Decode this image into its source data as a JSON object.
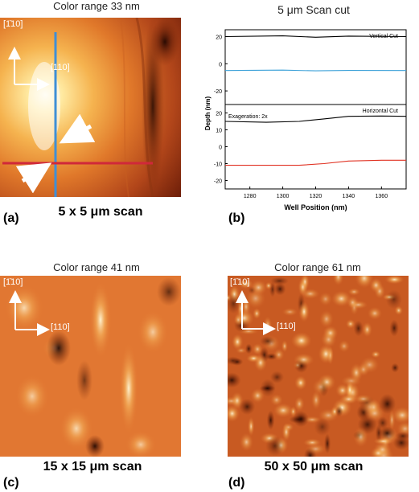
{
  "panels": {
    "a": {
      "letter": "(a)",
      "top_caption": "Color range 33 nm",
      "bottom_caption_prefix": "5  x 5 ",
      "bottom_caption_mu": "μ",
      "bottom_caption_suffix": "m scan",
      "dir_vert": "[1̄10]",
      "dir_horiz": "[110]"
    },
    "b": {
      "letter": "(b)",
      "title_prefix": "5 ",
      "title_mu": "μ",
      "title_suffix": "m Scan cut"
    },
    "c": {
      "letter": "(c)",
      "top_caption": "Color range 41 nm",
      "bottom_caption_prefix": "15  x 15 ",
      "bottom_caption_mu": "μ",
      "bottom_caption_suffix": "m scan",
      "dir_vert": "[1̄10]",
      "dir_horiz": "[110]"
    },
    "d": {
      "letter": "(d)",
      "top_caption": "Color range 61 nm",
      "bottom_caption_prefix": "50  x 50 ",
      "bottom_caption_mu": "μ",
      "bottom_caption_suffix": "m scan",
      "dir_vert": "[1̄10]",
      "dir_horiz": "[110]"
    }
  },
  "colors": {
    "vertical_line": "#3f8fd6",
    "horizontal_line": "#d0283a",
    "black_curve": "#000000",
    "blue_curve": "#3aa0d8",
    "red_curve": "#e03020"
  },
  "chart_data": {
    "type": "line",
    "title": "5 μm Scan cut",
    "xlabel": "Well Position (nm)",
    "ylabel": "Depth (nm)",
    "xlim": [
      1265,
      1375
    ],
    "x_ticks": [
      1280,
      1300,
      1320,
      1340,
      1360
    ],
    "subplots": [
      {
        "name": "Vertical Cut",
        "ylim": [
          -30,
          25
        ],
        "y_ticks": [
          20,
          0,
          -20
        ],
        "series": [
          {
            "color": "black",
            "x": [
              1265,
              1300,
              1320,
              1340,
              1375
            ],
            "y": [
              20,
              20.5,
              19.5,
              20.3,
              20
            ]
          },
          {
            "color": "blue",
            "x": [
              1265,
              1300,
              1320,
              1340,
              1375
            ],
            "y": [
              -5,
              -4.7,
              -5.2,
              -4.9,
              -5
            ]
          }
        ]
      },
      {
        "name": "Horizontal Cut",
        "annotation": "Exageration: 2x",
        "ylim": [
          -25,
          25
        ],
        "y_ticks": [
          20,
          10,
          0,
          -10,
          -20
        ],
        "series": [
          {
            "color": "black",
            "x": [
              1265,
              1290,
              1310,
              1325,
              1340,
              1360,
              1375
            ],
            "y": [
              15,
              14.5,
              15,
              16.5,
              18,
              18.2,
              18
            ]
          },
          {
            "color": "red",
            "x": [
              1265,
              1290,
              1310,
              1325,
              1340,
              1360,
              1375
            ],
            "y": [
              -11,
              -11,
              -11,
              -10,
              -8.5,
              -8,
              -8
            ]
          }
        ]
      }
    ]
  }
}
